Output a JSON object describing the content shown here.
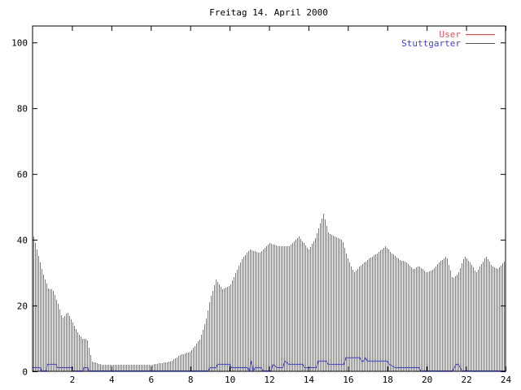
{
  "chart_data": {
    "type": "bar",
    "title": "Freitag 14. April 2000",
    "xlabel": "",
    "ylabel": "",
    "xlim": [
      0,
      24
    ],
    "ylim": [
      0,
      105
    ],
    "x_ticks": [
      2,
      4,
      6,
      8,
      10,
      12,
      14,
      16,
      18,
      20,
      22,
      24
    ],
    "y_ticks": [
      0,
      20,
      40,
      60,
      80,
      100
    ],
    "grid": false,
    "legend_position": "top-right",
    "series": [
      {
        "name": "User",
        "style": "impulses",
        "color": "#e05050",
        "points": [
          [
            0.0,
            42
          ],
          [
            0.5,
            30
          ],
          [
            0.8,
            25
          ],
          [
            1.0,
            25
          ],
          [
            1.25,
            21
          ],
          [
            1.5,
            16
          ],
          [
            1.75,
            18
          ],
          [
            2.0,
            15
          ],
          [
            2.25,
            12
          ],
          [
            2.5,
            10
          ],
          [
            2.75,
            10
          ],
          [
            3.0,
            3
          ],
          [
            3.5,
            2
          ],
          [
            4.0,
            2
          ],
          [
            5.0,
            2
          ],
          [
            6.0,
            2
          ],
          [
            7.0,
            3
          ],
          [
            7.5,
            5
          ],
          [
            8.0,
            6
          ],
          [
            8.5,
            10
          ],
          [
            8.8,
            16
          ],
          [
            9.0,
            22
          ],
          [
            9.3,
            28
          ],
          [
            9.6,
            25
          ],
          [
            10.0,
            26
          ],
          [
            10.3,
            30
          ],
          [
            10.6,
            34
          ],
          [
            11.0,
            37
          ],
          [
            11.5,
            36
          ],
          [
            12.0,
            39
          ],
          [
            12.5,
            38
          ],
          [
            13.0,
            38
          ],
          [
            13.5,
            41
          ],
          [
            14.0,
            37
          ],
          [
            14.3,
            40
          ],
          [
            14.75,
            48
          ],
          [
            15.0,
            42
          ],
          [
            15.3,
            41
          ],
          [
            15.7,
            40
          ],
          [
            16.0,
            34
          ],
          [
            16.3,
            30
          ],
          [
            16.6,
            32
          ],
          [
            17.0,
            34
          ],
          [
            17.5,
            36
          ],
          [
            17.9,
            38
          ],
          [
            18.2,
            36
          ],
          [
            18.6,
            34
          ],
          [
            19.0,
            33
          ],
          [
            19.3,
            31
          ],
          [
            19.6,
            32
          ],
          [
            20.0,
            30
          ],
          [
            20.3,
            31
          ],
          [
            20.6,
            33
          ],
          [
            21.0,
            35
          ],
          [
            21.3,
            28
          ],
          [
            21.6,
            30
          ],
          [
            21.9,
            35
          ],
          [
            22.2,
            33
          ],
          [
            22.5,
            30
          ],
          [
            22.8,
            33
          ],
          [
            23.0,
            35
          ],
          [
            23.3,
            32
          ],
          [
            23.6,
            31
          ],
          [
            24.0,
            34
          ]
        ]
      },
      {
        "name": "Stuttgarter",
        "style": "line",
        "color": "#4040e0",
        "points": [
          [
            0.0,
            1
          ],
          [
            0.4,
            1
          ],
          [
            0.45,
            0
          ],
          [
            0.7,
            0
          ],
          [
            0.75,
            2
          ],
          [
            1.2,
            2
          ],
          [
            1.25,
            1
          ],
          [
            2.0,
            1
          ],
          [
            2.05,
            0
          ],
          [
            2.55,
            0
          ],
          [
            2.6,
            1
          ],
          [
            2.8,
            1
          ],
          [
            2.85,
            0
          ],
          [
            8.9,
            0
          ],
          [
            9.0,
            1
          ],
          [
            9.3,
            1
          ],
          [
            9.4,
            2
          ],
          [
            10.0,
            2
          ],
          [
            10.1,
            1
          ],
          [
            10.9,
            1
          ],
          [
            11.0,
            0
          ],
          [
            11.1,
            3
          ],
          [
            11.2,
            0
          ],
          [
            11.3,
            1
          ],
          [
            11.6,
            1
          ],
          [
            11.7,
            0
          ],
          [
            12.1,
            0
          ],
          [
            12.2,
            2
          ],
          [
            12.4,
            1
          ],
          [
            12.7,
            1
          ],
          [
            12.8,
            3
          ],
          [
            13.0,
            2
          ],
          [
            13.7,
            2
          ],
          [
            13.8,
            1
          ],
          [
            14.4,
            1
          ],
          [
            14.5,
            3
          ],
          [
            14.9,
            3
          ],
          [
            15.0,
            2
          ],
          [
            15.8,
            2
          ],
          [
            15.9,
            4
          ],
          [
            16.6,
            4
          ],
          [
            16.7,
            3
          ],
          [
            16.8,
            3
          ],
          [
            16.9,
            4
          ],
          [
            17.0,
            3
          ],
          [
            18.0,
            3
          ],
          [
            18.1,
            2
          ],
          [
            18.4,
            1
          ],
          [
            19.6,
            1
          ],
          [
            19.7,
            0
          ],
          [
            21.3,
            0
          ],
          [
            21.5,
            2
          ],
          [
            21.6,
            2
          ],
          [
            21.8,
            0
          ],
          [
            24.0,
            0
          ]
        ]
      }
    ]
  }
}
